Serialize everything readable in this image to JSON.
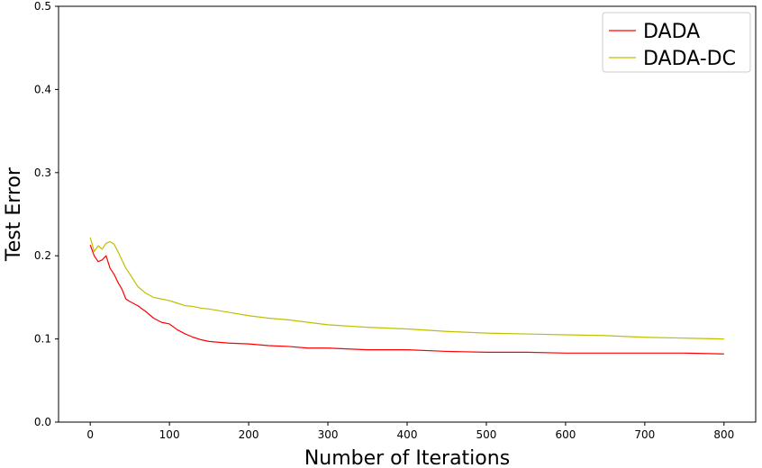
{
  "chart_data": {
    "type": "line",
    "xlabel": "Number of Iterations",
    "ylabel": "Test Error",
    "xlim": [
      -40,
      840
    ],
    "ylim": [
      0,
      0.5
    ],
    "xticks": [
      0,
      100,
      200,
      300,
      400,
      500,
      600,
      700,
      800
    ],
    "yticks": [
      0.0,
      0.1,
      0.2,
      0.3,
      0.4,
      0.5
    ],
    "xtick_labels": [
      "0",
      "100",
      "200",
      "300",
      "400",
      "500",
      "600",
      "700",
      "800"
    ],
    "ytick_labels": [
      "0.0",
      "0.1",
      "0.2",
      "0.3",
      "0.4",
      "0.5"
    ],
    "grid": false,
    "legend_position": "top-right",
    "series": [
      {
        "name": "DADA",
        "color": "#ff0000",
        "x": [
          0,
          5,
          10,
          15,
          20,
          25,
          30,
          35,
          40,
          45,
          50,
          60,
          70,
          80,
          90,
          100,
          110,
          120,
          130,
          140,
          150,
          175,
          200,
          225,
          250,
          275,
          300,
          350,
          400,
          450,
          500,
          550,
          600,
          650,
          700,
          750,
          800
        ],
        "y": [
          0.213,
          0.2,
          0.193,
          0.195,
          0.2,
          0.185,
          0.178,
          0.168,
          0.16,
          0.148,
          0.145,
          0.14,
          0.133,
          0.125,
          0.12,
          0.118,
          0.111,
          0.106,
          0.102,
          0.099,
          0.097,
          0.095,
          0.094,
          0.092,
          0.091,
          0.089,
          0.089,
          0.087,
          0.087,
          0.085,
          0.084,
          0.084,
          0.083,
          0.083,
          0.083,
          0.083,
          0.082
        ]
      },
      {
        "name": "DADA-DC",
        "color": "#bfbf00",
        "x": [
          0,
          5,
          10,
          15,
          20,
          25,
          30,
          35,
          40,
          45,
          50,
          60,
          70,
          80,
          90,
          100,
          110,
          120,
          130,
          140,
          150,
          175,
          200,
          225,
          250,
          275,
          300,
          350,
          400,
          450,
          500,
          550,
          600,
          650,
          700,
          750,
          800
        ],
        "y": [
          0.222,
          0.205,
          0.212,
          0.208,
          0.215,
          0.217,
          0.214,
          0.205,
          0.195,
          0.185,
          0.178,
          0.163,
          0.155,
          0.15,
          0.148,
          0.146,
          0.143,
          0.14,
          0.139,
          0.137,
          0.136,
          0.132,
          0.128,
          0.125,
          0.123,
          0.12,
          0.117,
          0.114,
          0.112,
          0.109,
          0.107,
          0.106,
          0.105,
          0.104,
          0.102,
          0.101,
          0.1
        ]
      }
    ]
  }
}
